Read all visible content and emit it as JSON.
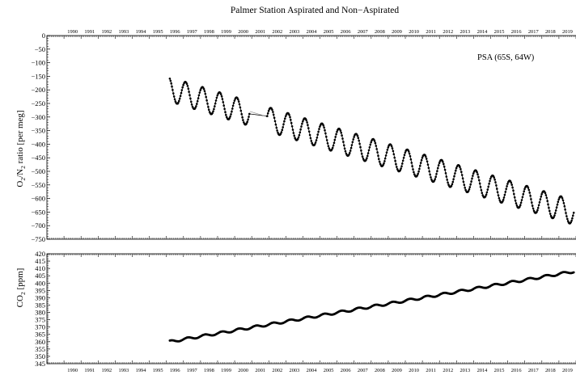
{
  "chart_data": [
    {
      "type": "scatter",
      "title": "Palmer Station Aspirated and Non−Aspirated",
      "annotation": "PSA (65S, 64W)",
      "xlabel": "",
      "ylabel": "O2/N2 ratio [per meg]",
      "ylabel_parts": {
        "pre": "O",
        "sub1": "2",
        "mid": "/N",
        "sub2": "2",
        "post": " ratio [per meg]"
      },
      "xlim": [
        1989.0,
        2020.0
      ],
      "ylim": [
        -750,
        0
      ],
      "yticks": [
        0,
        -50,
        -100,
        -150,
        -200,
        -250,
        -300,
        -350,
        -400,
        -450,
        -500,
        -550,
        -600,
        -650,
        -700,
        -750
      ],
      "x_tick_labels": [
        "1990",
        "1991",
        "1992",
        "1993",
        "1994",
        "1995",
        "1996",
        "1997",
        "1998",
        "1999",
        "2000",
        "2001",
        "2002",
        "2003",
        "2004",
        "2005",
        "2006",
        "2007",
        "2008",
        "2009",
        "2010",
        "2011",
        "2012",
        "2013",
        "2014",
        "2015",
        "2016",
        "2017",
        "2018",
        "2019",
        "2020"
      ],
      "grid": false,
      "series": [
        {
          "values_description_note": "",
          "style": "points with connecting line",
          "color": "#000000",
          "trend": {
            "start": [
              1996.2,
              -198
            ],
            "end": [
              2019.9,
              -652
            ]
          },
          "seasonal_amplitude": 45,
          "seasonal_peak_month_fraction": 0.2,
          "data_start": 1996.2,
          "data_end": 2019.9,
          "gap": [
            2000.9,
            2001.9
          ]
        }
      ]
    },
    {
      "type": "scatter",
      "title": "",
      "xlabel": "",
      "ylabel": "CO2 [ppm]",
      "ylabel_parts": {
        "pre": "CO",
        "sub1": "2",
        "post": " [ppm]"
      },
      "xlim": [
        1989.0,
        2020.0
      ],
      "ylim": [
        345,
        420
      ],
      "yticks": [
        345,
        350,
        355,
        360,
        365,
        370,
        375,
        380,
        385,
        390,
        395,
        400,
        405,
        410,
        415,
        420
      ],
      "x_tick_labels": [
        "1990",
        "1991",
        "1992",
        "1993",
        "1994",
        "1995",
        "1996",
        "1997",
        "1998",
        "1999",
        "2000",
        "2001",
        "2002",
        "2003",
        "2004",
        "2005",
        "2006",
        "2007",
        "2008",
        "2009",
        "2010",
        "2011",
        "2012",
        "2013",
        "2014",
        "2015",
        "2016",
        "2017",
        "2018",
        "2019",
        "2020"
      ],
      "grid": false,
      "series": [
        {
          "style": "points with connecting line",
          "color": "#000000",
          "trend": {
            "start": [
              1996.2,
              360
            ],
            "end": [
              2019.9,
              408
            ]
          },
          "seasonal_amplitude": 0.8,
          "data_start": 1996.2,
          "data_end": 2019.9
        }
      ]
    }
  ]
}
